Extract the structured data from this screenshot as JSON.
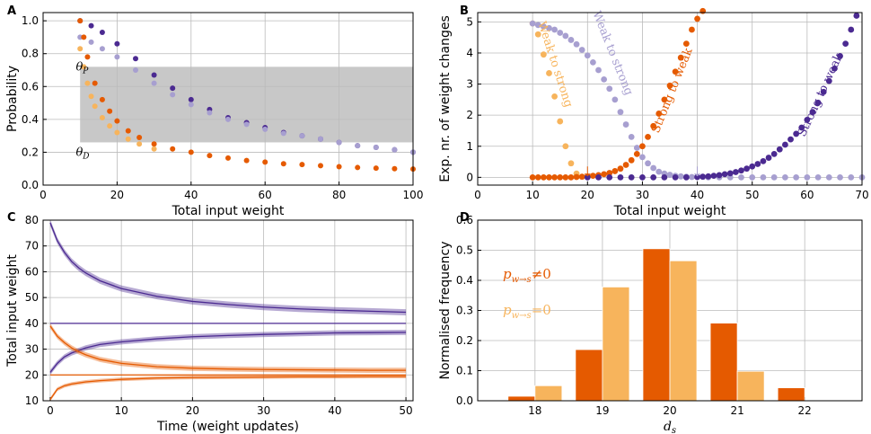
{
  "colors": {
    "purple": "#4b2a91",
    "lavender": "#a79fd0",
    "orange": "#e55a00",
    "light_orange": "#f7b45c",
    "grey_band": "#c8c8c8",
    "grid": "#bbbbbb"
  },
  "chart_data": [
    {
      "id": "A",
      "type": "scatter",
      "panel_label": "A",
      "xlabel": "Total input weight",
      "ylabel": "Probability",
      "xlim": [
        0,
        100
      ],
      "ylim": [
        0.0,
        1.05
      ],
      "xticks": [
        0,
        20,
        40,
        60,
        80,
        100
      ],
      "yticks": [
        0.0,
        0.2,
        0.4,
        0.6,
        0.8,
        1.0
      ],
      "ytick_labels": [
        "0.0",
        "0.2",
        "0.4",
        "0.6",
        "0.8",
        "1.0"
      ],
      "grid": true,
      "shaded_band": {
        "x": [
          10,
          100
        ],
        "y": [
          0.26,
          0.72
        ]
      },
      "annotations": [
        {
          "text": "θP",
          "x": 4,
          "y": 0.72
        },
        {
          "text": "θD",
          "x": 4,
          "y": 0.2
        }
      ],
      "series": [
        {
          "name": "purple",
          "color_key": "purple",
          "x": [
            10,
            13,
            16,
            20,
            25,
            30,
            35,
            40,
            45,
            50,
            55,
            60,
            65,
            70,
            75,
            80,
            85,
            90,
            95,
            100
          ],
          "y": [
            1.0,
            0.97,
            0.93,
            0.86,
            0.77,
            0.67,
            0.59,
            0.52,
            0.46,
            0.41,
            0.38,
            0.35,
            0.32,
            0.3,
            0.28,
            0.26,
            0.24,
            0.23,
            0.215,
            0.2
          ]
        },
        {
          "name": "lavender",
          "color_key": "lavender",
          "x": [
            10,
            13,
            16,
            20,
            25,
            30,
            35,
            40,
            45,
            50,
            55,
            60,
            65,
            70,
            75,
            80,
            85,
            90,
            95,
            100
          ],
          "y": [
            0.9,
            0.87,
            0.83,
            0.78,
            0.7,
            0.62,
            0.55,
            0.49,
            0.44,
            0.4,
            0.37,
            0.34,
            0.315,
            0.3,
            0.28,
            0.26,
            0.24,
            0.23,
            0.215,
            0.2
          ]
        },
        {
          "name": "orange",
          "color_key": "orange",
          "x": [
            10,
            11,
            12,
            14,
            16,
            18,
            20,
            23,
            26,
            30,
            35,
            40,
            45,
            50,
            55,
            60,
            65,
            70,
            75,
            80,
            85,
            90,
            95,
            100
          ],
          "y": [
            1.0,
            0.9,
            0.78,
            0.62,
            0.52,
            0.45,
            0.39,
            0.33,
            0.29,
            0.25,
            0.22,
            0.2,
            0.18,
            0.165,
            0.15,
            0.14,
            0.13,
            0.125,
            0.118,
            0.112,
            0.107,
            0.103,
            0.1,
            0.098
          ]
        },
        {
          "name": "light orange",
          "color_key": "light_orange",
          "x": [
            10,
            11,
            12,
            13,
            14,
            16,
            18,
            20,
            23,
            26,
            30
          ],
          "y": [
            0.83,
            0.72,
            0.62,
            0.54,
            0.48,
            0.41,
            0.36,
            0.32,
            0.28,
            0.25,
            0.22
          ]
        }
      ]
    },
    {
      "id": "B",
      "type": "scatter",
      "panel_label": "B",
      "xlabel": "Total input weight",
      "ylabel": "Exp. nr. of weight changes",
      "xlim": [
        0,
        70
      ],
      "ylim": [
        -0.25,
        5.3
      ],
      "xticks": [
        0,
        10,
        20,
        30,
        40,
        50,
        60,
        70
      ],
      "yticks": [
        0,
        1,
        2,
        3,
        4,
        5
      ],
      "ytick_labels": [
        "0",
        "1",
        "2",
        "3",
        "4",
        "5"
      ],
      "grid": true,
      "arrows": [
        {
          "x": 20,
          "color_key": "orange"
        },
        {
          "x": 40,
          "color_key": "lavender"
        }
      ],
      "labels": [
        {
          "text": "Weak to strong",
          "color_key": "light_orange",
          "x": 13.5,
          "y": 3.6,
          "angle": 72
        },
        {
          "text": "Weak to strong",
          "color_key": "lavender",
          "x": 24,
          "y": 3.95,
          "angle": 68
        },
        {
          "text": "Strong to weak",
          "color_key": "orange",
          "x": 36,
          "y": 2.75,
          "angle": -68
        },
        {
          "text": "Strong to weak",
          "color_key": "purple",
          "x": 63,
          "y": 2.6,
          "angle": -65
        }
      ],
      "series": [
        {
          "name": "Weak to strong (light orange)",
          "color_key": "light_orange",
          "x": [
            10,
            11,
            12,
            13,
            14,
            15,
            16,
            17,
            18
          ],
          "y": [
            4.95,
            4.6,
            3.95,
            3.35,
            2.6,
            1.8,
            1.0,
            0.45,
            0.12
          ]
        },
        {
          "name": "Weak to strong (lavender)",
          "color_key": "lavender",
          "x": [
            10,
            11,
            12,
            13,
            14,
            15,
            16,
            17,
            18,
            19,
            20,
            21,
            22,
            23,
            24,
            25,
            26,
            27,
            28,
            29,
            30,
            31,
            32,
            33,
            34,
            35,
            36,
            37,
            38,
            39,
            40,
            42,
            44,
            46,
            48,
            50,
            52,
            54,
            56,
            58,
            60,
            62,
            64,
            66,
            68,
            70
          ],
          "y": [
            4.95,
            4.9,
            4.85,
            4.8,
            4.75,
            4.65,
            4.55,
            4.42,
            4.28,
            4.1,
            3.92,
            3.7,
            3.45,
            3.15,
            2.85,
            2.5,
            2.1,
            1.7,
            1.3,
            0.95,
            0.65,
            0.45,
            0.3,
            0.18,
            0.12,
            0.08,
            0.05,
            0.03,
            0.02,
            0.01,
            0.01,
            0,
            0,
            0,
            0,
            0,
            0,
            0,
            0,
            0,
            0,
            0,
            0,
            0,
            0,
            0
          ]
        },
        {
          "name": "Strong to weak (orange)",
          "color_key": "orange",
          "x": [
            10,
            11,
            12,
            13,
            14,
            15,
            16,
            17,
            18,
            19,
            20,
            21,
            22,
            23,
            24,
            25,
            26,
            27,
            28,
            29,
            30,
            31,
            32,
            33,
            34,
            35,
            36,
            37,
            38,
            39,
            40,
            41
          ],
          "y": [
            0,
            0,
            0,
            0,
            0,
            0,
            0,
            0,
            0.01,
            0.02,
            0.03,
            0.05,
            0.07,
            0.1,
            0.14,
            0.2,
            0.28,
            0.4,
            0.55,
            0.75,
            1.0,
            1.3,
            1.65,
            2.05,
            2.5,
            2.95,
            3.4,
            3.85,
            4.3,
            4.75,
            5.1,
            5.35
          ]
        },
        {
          "name": "Strong to weak (purple)",
          "color_key": "purple",
          "x": [
            20,
            22,
            24,
            26,
            28,
            30,
            32,
            34,
            36,
            38,
            40,
            41,
            42,
            43,
            44,
            45,
            46,
            47,
            48,
            49,
            50,
            51,
            52,
            53,
            54,
            55,
            56,
            57,
            58,
            59,
            60,
            61,
            62,
            63,
            64,
            65,
            66,
            67,
            68,
            69
          ],
          "y": [
            0,
            0,
            0,
            0,
            0,
            0,
            0,
            0,
            0,
            0,
            0.01,
            0.02,
            0.03,
            0.05,
            0.07,
            0.1,
            0.13,
            0.17,
            0.22,
            0.28,
            0.35,
            0.43,
            0.52,
            0.63,
            0.75,
            0.9,
            1.05,
            1.22,
            1.4,
            1.6,
            1.85,
            2.1,
            2.4,
            2.75,
            3.1,
            3.5,
            3.9,
            4.3,
            4.75,
            5.2
          ]
        }
      ]
    },
    {
      "id": "C",
      "type": "line",
      "panel_label": "C",
      "xlabel": "Time (weight updates)",
      "ylabel": "Total input weight",
      "xlim": [
        -1,
        51
      ],
      "ylim": [
        10,
        80
      ],
      "xticks": [
        0,
        10,
        20,
        30,
        40,
        50
      ],
      "yticks": [
        10,
        20,
        30,
        40,
        50,
        60,
        70,
        80
      ],
      "ytick_labels": [
        "10",
        "20",
        "30",
        "40",
        "50",
        "60",
        "70",
        "80"
      ],
      "grid": true,
      "series": [
        {
          "name": "start 80",
          "color_key": "purple",
          "x": [
            0,
            1,
            2,
            3,
            4,
            5,
            7,
            10,
            15,
            20,
            25,
            30,
            35,
            40,
            45,
            50
          ],
          "y": [
            79,
            72,
            67.5,
            64,
            61.5,
            59.5,
            56.5,
            53.5,
            50.5,
            48.5,
            47.3,
            46.3,
            45.6,
            45.1,
            44.7,
            44.3
          ],
          "band": 1.2
        },
        {
          "name": "constant 40",
          "color_key": "purple",
          "x": [
            0,
            50
          ],
          "y": [
            40,
            40
          ],
          "band": 0
        },
        {
          "name": "start 20 (purple)",
          "color_key": "purple",
          "x": [
            0,
            1,
            2,
            3,
            5,
            7,
            10,
            15,
            20,
            25,
            30,
            35,
            40,
            45,
            50
          ],
          "y": [
            21,
            24.5,
            27,
            28.5,
            30.5,
            31.8,
            32.8,
            34,
            34.8,
            35.3,
            35.7,
            36,
            36.3,
            36.4,
            36.5
          ],
          "band": 1.0
        },
        {
          "name": "start 40 (orange)",
          "color_key": "orange",
          "x": [
            0,
            1,
            2,
            3,
            4,
            5,
            7,
            10,
            15,
            20,
            25,
            30,
            35,
            40,
            45,
            50
          ],
          "y": [
            39,
            35,
            32.5,
            30.5,
            29,
            27.8,
            26,
            24.5,
            23.2,
            22.6,
            22.3,
            22.1,
            22,
            21.9,
            21.8,
            21.8
          ],
          "band": 1.0
        },
        {
          "name": "constant 20",
          "color_key": "orange",
          "x": [
            0,
            50
          ],
          "y": [
            20,
            20
          ],
          "band": 0
        },
        {
          "name": "start 10 (orange)",
          "color_key": "orange",
          "x": [
            0,
            1,
            2,
            3,
            5,
            7,
            10,
            15,
            20,
            25,
            30,
            35,
            40,
            45,
            50
          ],
          "y": [
            10.5,
            14.5,
            15.8,
            16.5,
            17.3,
            17.8,
            18.3,
            18.8,
            19,
            19.1,
            19.2,
            19.3,
            19.3,
            19.4,
            19.4
          ],
          "band": 0.7
        }
      ]
    },
    {
      "id": "D",
      "type": "bar",
      "panel_label": "D",
      "xlabel": "d",
      "xlabel_sub": "s",
      "ylabel": "Normalised frequency",
      "categories": [
        "18",
        "19",
        "20",
        "21",
        "22"
      ],
      "ylim": [
        0.0,
        0.6
      ],
      "yticks": [
        0.0,
        0.1,
        0.2,
        0.3,
        0.4,
        0.5,
        0.6
      ],
      "ytick_labels": [
        "0.0",
        "0.1",
        "0.2",
        "0.3",
        "0.4",
        "0.5",
        "0.6"
      ],
      "grid": true,
      "legend": [
        {
          "base": "p",
          "sub": "w→s",
          "rel": "≠0",
          "color_key": "orange"
        },
        {
          "base": "p",
          "sub": "w→s",
          "rel": "=0",
          "color_key": "light_orange"
        }
      ],
      "series": [
        {
          "name": "p_w→s ≠ 0",
          "color_key": "orange",
          "values": [
            0.015,
            0.17,
            0.505,
            0.258,
            0.043
          ]
        },
        {
          "name": "p_w→s = 0",
          "color_key": "light_orange",
          "values": [
            0.05,
            0.378,
            0.465,
            0.098,
            0.0
          ]
        }
      ]
    }
  ]
}
